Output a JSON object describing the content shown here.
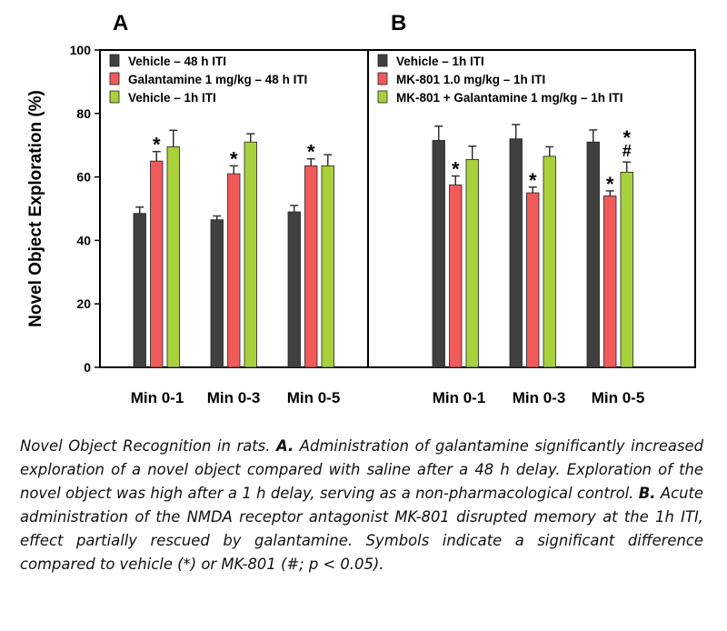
{
  "chart_data": [
    {
      "panel": "A",
      "type": "bar",
      "ylabel": "Novel Object Exploration (%)",
      "ylim": [
        0,
        100
      ],
      "yticks": [
        0,
        20,
        40,
        60,
        80,
        100
      ],
      "categories": [
        "Min 0-1",
        "Min 0-3",
        "Min 0-5"
      ],
      "legend_position": "top-left",
      "series": [
        {
          "name": "Vehicle – 48 h ITI",
          "color": "#404040",
          "values": [
            48.5,
            46.5,
            49
          ],
          "errors": [
            2,
            1.2,
            2
          ],
          "marks": [
            "",
            "",
            ""
          ]
        },
        {
          "name": "Galantamine 1 mg/kg – 48 h ITI",
          "color": "#f05a5a",
          "values": [
            65,
            61,
            63.5
          ],
          "errors": [
            3,
            2.5,
            2.2
          ],
          "marks": [
            "*",
            "*",
            "*"
          ]
        },
        {
          "name": "Vehicle – 1h ITI",
          "color": "#a8d13c",
          "values": [
            69.5,
            71,
            63.5
          ],
          "errors": [
            5.2,
            2.6,
            3.5
          ],
          "marks": [
            "",
            "",
            ""
          ]
        }
      ]
    },
    {
      "panel": "B",
      "type": "bar",
      "ylim": [
        0,
        100
      ],
      "categories": [
        "Min 0-1",
        "Min 0-3",
        "Min 0-5"
      ],
      "legend_position": "top-left",
      "series": [
        {
          "name": "Vehicle – 1h ITI",
          "color": "#404040",
          "values": [
            71.5,
            72,
            71
          ],
          "errors": [
            4.5,
            4.5,
            3.8
          ],
          "marks": [
            "",
            "",
            ""
          ]
        },
        {
          "name": "MK-801 1.0 mg/kg – 1h ITI",
          "color": "#f05a5a",
          "values": [
            57.5,
            55,
            54
          ],
          "errors": [
            2.8,
            1.8,
            1.6
          ],
          "marks": [
            "*",
            "*",
            "*"
          ]
        },
        {
          "name": "MK-801 + Galantamine 1 mg/kg – 1h ITI",
          "color": "#a8d13c",
          "values": [
            65.5,
            66.5,
            61.5
          ],
          "errors": [
            4.2,
            3,
            3.2
          ],
          "marks": [
            "",
            "",
            "*\n#"
          ]
        }
      ]
    }
  ],
  "caption": {
    "intro": "Novel Object Recognition in rats. ",
    "a_label": "A.",
    "a_text": " Administration of galantamine significantly increased exploration of a novel object compared with saline after a 48 h delay. Exploration of the novel object was high after a 1 h delay, serving as a non-pharmacological control. ",
    "b_label": "B.",
    "b_text": " Acute administration of the NMDA receptor antagonist MK-801 disrupted memory at the 1h ITI, effect partially rescued by galantamine. Symbols indicate a significant difference compared to vehicle (*) or MK-801 (#; p < 0.05)."
  }
}
